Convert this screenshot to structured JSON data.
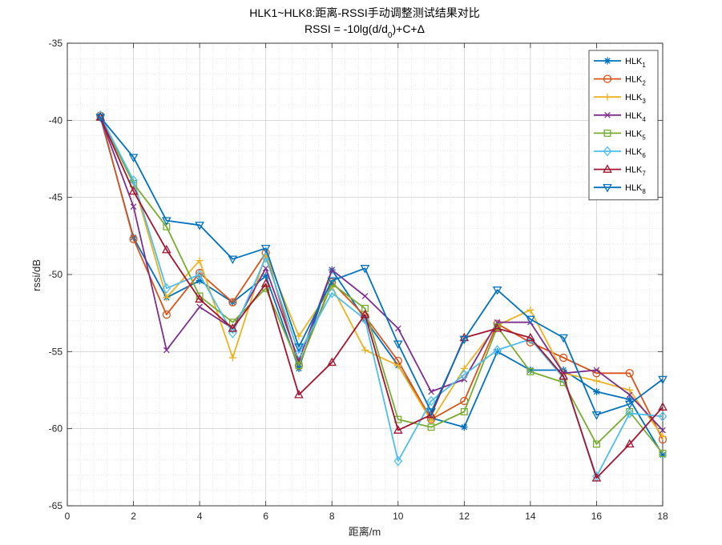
{
  "chart_data": {
    "type": "line",
    "title_line1": "HLK1~HLK8:距离-RSSI手动调整测试结果对比",
    "title_line2": "RSSI = -10lg(d/d",
    "title_line2_sub": "0",
    "title_line2_tail": ")+C+Δ",
    "xlabel": "距离/m",
    "ylabel": "rssi/dB",
    "xlim": [
      0,
      18
    ],
    "ylim": [
      -65,
      -35
    ],
    "x_ticks": [
      "0",
      "2",
      "4",
      "6",
      "8",
      "10",
      "12",
      "14",
      "16",
      "18"
    ],
    "y_ticks": [
      "-35",
      "-40",
      "-45",
      "-50",
      "-55",
      "-60",
      "-65"
    ],
    "grid": true,
    "minor_grid": true,
    "legend_position": "top-right",
    "x": [
      1,
      2,
      3,
      4,
      5,
      6,
      7,
      8,
      9,
      10,
      11,
      12,
      13,
      14,
      15,
      16,
      17,
      18
    ],
    "series": [
      {
        "name": "HLK",
        "sub": "1",
        "color": "#0072BD",
        "marker": "asterisk",
        "values": [
          -39.8,
          -47.6,
          -51.5,
          -50.4,
          -51.8,
          -50.1,
          -56.1,
          -49.7,
          -52.9,
          -55.9,
          -59.3,
          -59.9,
          -55.0,
          -56.2,
          -56.2,
          -57.6,
          -58.1,
          -61.7
        ]
      },
      {
        "name": "HLK",
        "sub": "2",
        "color": "#D95319",
        "marker": "circle",
        "values": [
          -39.7,
          -47.7,
          -52.6,
          -49.9,
          -51.8,
          -48.6,
          -55.9,
          -50.5,
          -52.7,
          -55.6,
          -59.4,
          -58.2,
          -53.2,
          -54.4,
          -55.4,
          -56.4,
          -56.4,
          -60.7
        ]
      },
      {
        "name": "HLK",
        "sub": "3",
        "color": "#EDB120",
        "marker": "plus",
        "values": [
          -39.7,
          -44.0,
          -51.5,
          -49.1,
          -55.4,
          -48.7,
          -54.0,
          -50.8,
          -54.9,
          -55.9,
          -59.5,
          -56.1,
          -53.3,
          -52.3,
          -56.4,
          -56.9,
          -57.5,
          -60.5
        ]
      },
      {
        "name": "HLK",
        "sub": "4",
        "color": "#7E2F8E",
        "marker": "x",
        "values": [
          -39.8,
          -45.6,
          -54.9,
          -52.1,
          -53.5,
          -49.6,
          -55.6,
          -49.7,
          -51.4,
          -53.5,
          -57.6,
          -56.8,
          -53.1,
          -53.1,
          -56.4,
          -56.2,
          -57.8,
          -60.1
        ]
      },
      {
        "name": "HLK",
        "sub": "5",
        "color": "#77AC30",
        "marker": "square",
        "values": [
          -39.8,
          -44.1,
          -46.9,
          -51.4,
          -53.1,
          -50.9,
          -55.9,
          -50.6,
          -52.2,
          -59.4,
          -59.9,
          -58.9,
          -53.4,
          -56.3,
          -57.0,
          -61.0,
          -58.9,
          -61.6
        ]
      },
      {
        "name": "HLK",
        "sub": "6",
        "color": "#4DBEEE",
        "marker": "diamond",
        "values": [
          -39.7,
          -43.9,
          -50.9,
          -50.0,
          -53.8,
          -48.9,
          -55.1,
          -51.2,
          -52.9,
          -62.1,
          -58.2,
          -56.5,
          -54.9,
          -54.2,
          -56.7,
          -63.1,
          -59.0,
          -59.2
        ]
      },
      {
        "name": "HLK",
        "sub": "7",
        "color": "#A2142F",
        "marker": "triangle-up",
        "values": [
          -39.8,
          -44.6,
          -48.4,
          -51.6,
          -53.5,
          -50.6,
          -57.8,
          -55.7,
          -52.6,
          -60.1,
          -59.1,
          -54.1,
          -53.5,
          -54.1,
          -56.6,
          -63.2,
          -61.0,
          -58.6
        ]
      },
      {
        "name": "HLK",
        "sub": "8",
        "color": "#0072BD",
        "marker": "triangle-down",
        "values": [
          -39.8,
          -42.4,
          -46.5,
          -46.8,
          -49.0,
          -48.3,
          -54.7,
          -50.4,
          -49.6,
          -54.5,
          -58.9,
          -54.2,
          -51.0,
          -52.9,
          -54.1,
          -59.1,
          -58.4,
          -56.8
        ]
      }
    ]
  }
}
